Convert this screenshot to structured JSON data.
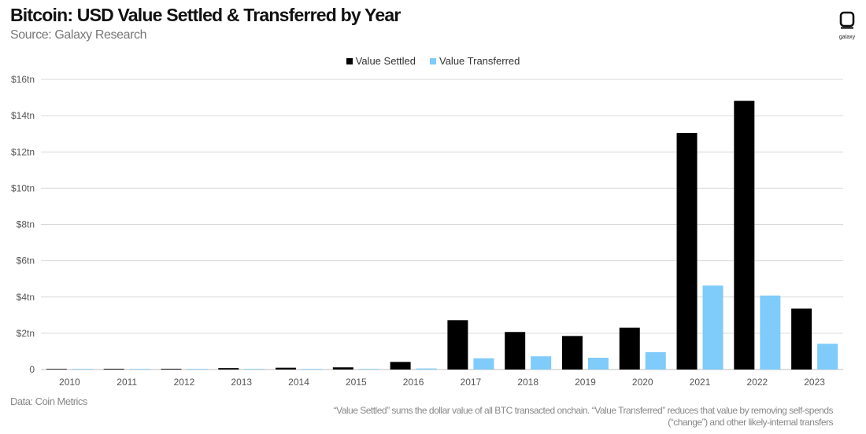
{
  "header": {
    "title": "Bitcoin: USD Value Settled & Transferred by Year",
    "subtitle": "Source: Galaxy Research"
  },
  "logo": {
    "text": "galaxy"
  },
  "footer": {
    "data_source": "Data: Coin Metrics",
    "note": "“Value Settled” sums the dollar value of all BTC transacted onchain. “Value Transferred” reduces that value by removing self-spends (“change”) and other likely-internal transfers"
  },
  "colors": {
    "settled": "#000000",
    "transferred": "#7fcbf9",
    "grid": "#d9d9d9"
  },
  "chart_data": {
    "type": "bar",
    "title": "Bitcoin: USD Value Settled & Transferred by Year",
    "xlabel": "",
    "ylabel": "",
    "ylim": [
      0,
      16
    ],
    "yticks": [
      0,
      2,
      4,
      6,
      8,
      10,
      12,
      14,
      16
    ],
    "ytick_labels": [
      "0",
      "$2tn",
      "$4tn",
      "$6tn",
      "$8tn",
      "$10tn",
      "$12tn",
      "$14tn",
      "$16tn"
    ],
    "categories": [
      "2010",
      "2011",
      "2012",
      "2013",
      "2014",
      "2015",
      "2016",
      "2017",
      "2018",
      "2019",
      "2020",
      "2021",
      "2022",
      "2023"
    ],
    "series": [
      {
        "name": "Value Settled",
        "color": "#000000",
        "values": [
          0.001,
          0.04,
          0.04,
          0.08,
          0.1,
          0.12,
          0.42,
          2.72,
          2.07,
          1.85,
          2.31,
          13.05,
          14.82,
          3.36
        ]
      },
      {
        "name": "Value Transferred",
        "color": "#7fcbf9",
        "values": [
          0.0005,
          0.01,
          0.01,
          0.02,
          0.02,
          0.02,
          0.06,
          0.62,
          0.73,
          0.65,
          0.96,
          4.63,
          4.08,
          1.42
        ]
      }
    ],
    "legend_position": "top-center",
    "grid": true
  }
}
